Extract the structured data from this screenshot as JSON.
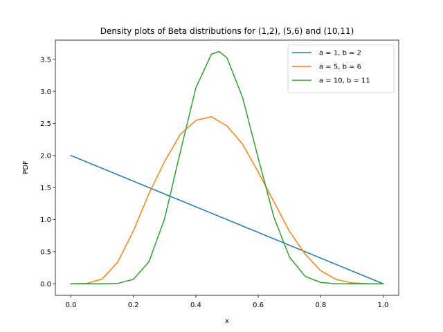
{
  "chart_data": {
    "type": "line",
    "title": "Density plots of Beta distributions for (1,2), (5,6) and (10,11)",
    "xlabel": "x",
    "ylabel": "PDF",
    "xlim": [
      -0.05,
      1.05
    ],
    "ylim": [
      -0.181,
      3.8
    ],
    "xticks": [
      0.0,
      0.2,
      0.4,
      0.6,
      0.8,
      1.0
    ],
    "xtick_labels": [
      "0.0",
      "0.2",
      "0.4",
      "0.6",
      "0.8",
      "1.0"
    ],
    "yticks": [
      0.0,
      0.5,
      1.0,
      1.5,
      2.0,
      2.5,
      3.0,
      3.5
    ],
    "ytick_labels": [
      "0.0",
      "0.5",
      "1.0",
      "1.5",
      "2.0",
      "2.5",
      "3.0",
      "3.5"
    ],
    "grid": false,
    "legend_position": "top-right",
    "series": [
      {
        "name": "a = 1, b = 2",
        "color": "#1f77b4",
        "x": [
          0.0,
          1.0
        ],
        "y": [
          2.0,
          0.0
        ]
      },
      {
        "name": "a = 5, b = 6",
        "color": "#ff7f0e",
        "x": [
          0.0,
          0.05,
          0.1,
          0.15,
          0.2,
          0.25,
          0.3,
          0.35,
          0.4,
          0.45,
          0.5,
          0.55,
          0.6,
          0.65,
          0.7,
          0.75,
          0.8,
          0.85,
          0.9,
          0.95,
          1.0
        ],
        "y": [
          0.0,
          0.0046,
          0.0738,
          0.3389,
          0.8258,
          1.4078,
          1.9064,
          2.3283,
          2.5482,
          2.6051,
          2.4609,
          2.1765,
          1.7418,
          1.2806,
          0.817,
          0.4634,
          0.2038,
          0.0671,
          0.0126,
          0.0008,
          0.0
        ]
      },
      {
        "name": "a = 10, b = 11",
        "color": "#2ca02c",
        "x": [
          0.0,
          0.1,
          0.15,
          0.2,
          0.25,
          0.3,
          0.35,
          0.4,
          0.45,
          0.475,
          0.5,
          0.55,
          0.6,
          0.65,
          0.7,
          0.75,
          0.8,
          0.85,
          0.9,
          1.0
        ],
        "y": [
          0.0,
          0.0003,
          0.0055,
          0.0678,
          0.3449,
          1.0152,
          2.0497,
          3.0545,
          3.5828,
          3.6209,
          3.5221,
          2.9015,
          1.9578,
          1.0398,
          0.4164,
          0.1163,
          0.02,
          0.0017,
          0.0001,
          0.0
        ]
      }
    ]
  }
}
